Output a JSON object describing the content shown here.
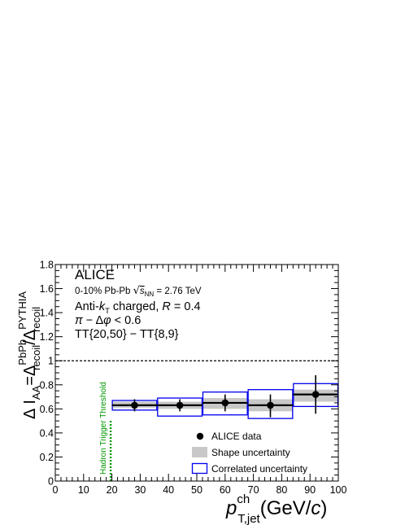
{
  "chart_data": {
    "type": "scatter",
    "xlim": [
      0,
      100
    ],
    "ylim": [
      0,
      1.8
    ],
    "x_ticks": [
      "0",
      "10",
      "20",
      "30",
      "40",
      "50",
      "60",
      "70",
      "80",
      "90",
      "100"
    ],
    "y_ticks": [
      "0",
      "0.2",
      "0.4",
      "0.6",
      "0.8",
      "1",
      "1.2",
      "1.4",
      "1.6",
      "1.8"
    ],
    "xlabel": {
      "p": "p",
      "sup": "ch",
      "sub": "T,jet",
      "unit_open": "(GeV/",
      "unit_c": "c",
      "unit_close": ")"
    },
    "ylabel": {
      "delta": "Δ",
      "i": "I",
      "i_sub": "AA",
      "eq": "=Δ",
      "num_sup": "PbPb",
      "num_sub": "recoil",
      "slash": "/Δ",
      "den_sup": "PYTHIA",
      "den_sub": "recoil"
    },
    "annotations": {
      "experiment": "ALICE",
      "collision_prefix": "0-10% Pb-Pb ",
      "collision_sqrt": "√",
      "collision_s": "s",
      "collision_s_sub": "NN",
      "collision_suffix": " = 2.76 TeV",
      "jet_prefix": "Anti-",
      "jet_k": "k",
      "jet_k_sub": "T",
      "jet_mid": " charged, ",
      "jet_R": "R",
      "jet_suffix": " = 0.4",
      "dphi_pi": "π",
      "dphi_mid": " − Δ",
      "dphi_phi": "φ",
      "dphi_suffix": " < 0.6",
      "tt": "TT{20,50} − TT{8,9}",
      "threshold": "Hadron Trigger Threshold"
    },
    "reference_line_y": 1.0,
    "threshold_x": 20,
    "threshold_ymax": 0.5,
    "legend": {
      "placement": "bottom-right",
      "entries": [
        "ALICE data",
        "Shape uncertainty",
        "Correlated uncertainty"
      ]
    },
    "series": [
      {
        "name": "ALICE data",
        "points": [
          {
            "x": 28,
            "x_low": 20,
            "x_high": 36,
            "y": 0.63,
            "stat_low": 0.58,
            "stat_high": 0.68,
            "shape_low": 0.61,
            "shape_high": 0.66,
            "corr_low": 0.59,
            "corr_high": 0.67
          },
          {
            "x": 44,
            "x_low": 36,
            "x_high": 52,
            "y": 0.63,
            "stat_low": 0.58,
            "stat_high": 0.68,
            "shape_low": 0.6,
            "shape_high": 0.66,
            "corr_low": 0.54,
            "corr_high": 0.69
          },
          {
            "x": 60,
            "x_low": 52,
            "x_high": 68,
            "y": 0.65,
            "stat_low": 0.58,
            "stat_high": 0.72,
            "shape_low": 0.6,
            "shape_high": 0.69,
            "corr_low": 0.55,
            "corr_high": 0.74
          },
          {
            "x": 76,
            "x_low": 68,
            "x_high": 84,
            "y": 0.63,
            "stat_low": 0.53,
            "stat_high": 0.72,
            "shape_low": 0.58,
            "shape_high": 0.68,
            "corr_low": 0.52,
            "corr_high": 0.76
          },
          {
            "x": 92,
            "x_low": 84,
            "x_high": 100,
            "y": 0.72,
            "stat_low": 0.56,
            "stat_high": 0.88,
            "shape_low": 0.66,
            "shape_high": 0.76,
            "corr_low": 0.62,
            "corr_high": 0.81
          }
        ]
      }
    ],
    "colors": {
      "data": "#000000",
      "shape_band": "#c8c8c8",
      "correlated_box": "#0000ee",
      "threshold": "#009900",
      "reference": "#000000"
    }
  }
}
